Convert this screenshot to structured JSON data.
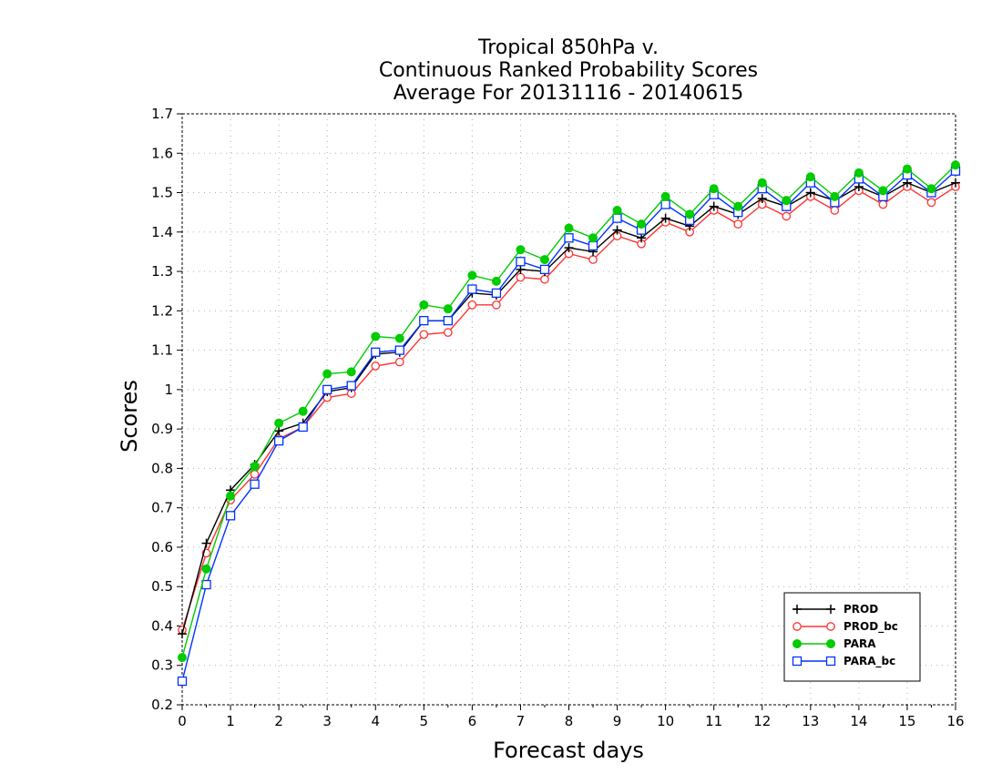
{
  "chart_data": {
    "type": "line",
    "title": [
      "Tropical 850hPa v.",
      "Continuous Ranked Probability Scores",
      "Average For 20131116 - 20140615"
    ],
    "xlabel": "Forecast days",
    "ylabel": "Scores",
    "xlim": [
      0,
      16
    ],
    "ylim": [
      0.2,
      1.7
    ],
    "xticks": [
      0,
      1,
      2,
      3,
      4,
      5,
      6,
      7,
      8,
      9,
      10,
      11,
      12,
      13,
      14,
      15,
      16
    ],
    "yticks": [
      0.2,
      0.3,
      0.4,
      0.5,
      0.6,
      0.7,
      0.8,
      0.9,
      1,
      1.1,
      1.2,
      1.3,
      1.4,
      1.5,
      1.6,
      1.7
    ],
    "grid": true,
    "legend_position": "bottom-right",
    "x": [
      0,
      0.5,
      1,
      1.5,
      2,
      2.5,
      3,
      3.5,
      4,
      4.5,
      5,
      5.5,
      6,
      6.5,
      7,
      7.5,
      8,
      8.5,
      9,
      9.5,
      10,
      10.5,
      11,
      11.5,
      12,
      12.5,
      13,
      13.5,
      14,
      14.5,
      15,
      15.5,
      16
    ],
    "series": [
      {
        "name": "PROD",
        "color": "#000000",
        "marker": "plus",
        "values": [
          0.38,
          0.61,
          0.745,
          0.81,
          0.895,
          0.915,
          0.995,
          1.005,
          1.09,
          1.095,
          1.175,
          1.175,
          1.245,
          1.24,
          1.305,
          1.3,
          1.36,
          1.35,
          1.405,
          1.385,
          1.435,
          1.415,
          1.465,
          1.445,
          1.485,
          1.465,
          1.5,
          1.48,
          1.515,
          1.49,
          1.525,
          1.5,
          1.525
        ]
      },
      {
        "name": "PROD_bc",
        "color": "#ff3333",
        "marker": "circle-open",
        "values": [
          0.39,
          0.585,
          0.72,
          0.785,
          0.875,
          0.905,
          0.98,
          0.99,
          1.06,
          1.07,
          1.14,
          1.145,
          1.215,
          1.215,
          1.285,
          1.28,
          1.345,
          1.33,
          1.39,
          1.37,
          1.425,
          1.4,
          1.455,
          1.42,
          1.47,
          1.44,
          1.49,
          1.455,
          1.505,
          1.47,
          1.515,
          1.475,
          1.515
        ]
      },
      {
        "name": "PARA",
        "color": "#00cc00",
        "marker": "circle-filled",
        "values": [
          0.32,
          0.545,
          0.73,
          0.805,
          0.915,
          0.945,
          1.04,
          1.045,
          1.135,
          1.13,
          1.215,
          1.205,
          1.29,
          1.275,
          1.355,
          1.33,
          1.41,
          1.385,
          1.455,
          1.42,
          1.49,
          1.445,
          1.51,
          1.465,
          1.525,
          1.48,
          1.54,
          1.49,
          1.55,
          1.505,
          1.56,
          1.51,
          1.57
        ]
      },
      {
        "name": "PARA_bc",
        "color": "#0033ff",
        "marker": "square-open",
        "values": [
          0.26,
          0.505,
          0.68,
          0.76,
          0.87,
          0.905,
          1.0,
          1.01,
          1.095,
          1.1,
          1.175,
          1.175,
          1.255,
          1.245,
          1.325,
          1.305,
          1.385,
          1.365,
          1.435,
          1.405,
          1.47,
          1.43,
          1.495,
          1.45,
          1.51,
          1.465,
          1.525,
          1.475,
          1.535,
          1.49,
          1.545,
          1.5,
          1.555
        ]
      }
    ]
  }
}
